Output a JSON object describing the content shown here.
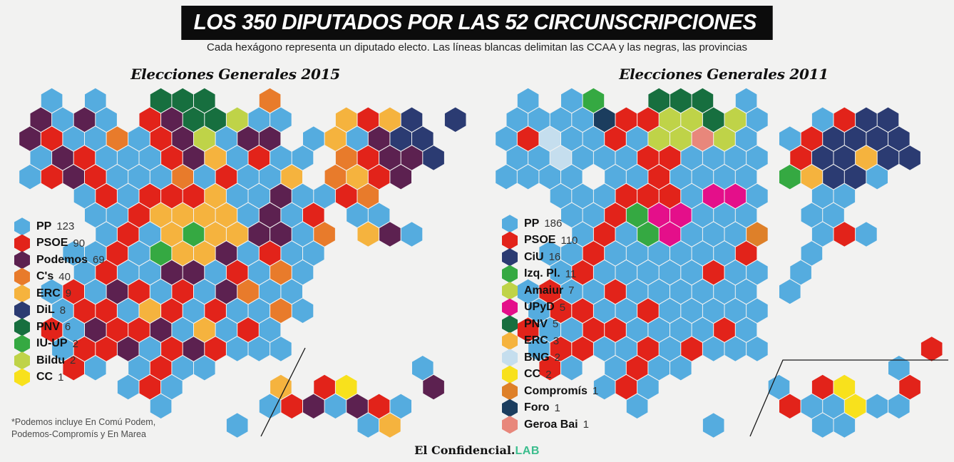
{
  "title": "LOS 350 DIPUTADOS POR LAS 52 CIRCUNSCRIPCIONES",
  "subtitle": "Cada hexágono representa un diputado electo. Las líneas blancas delimitan las CCAA y las negras, las provincias",
  "footnote_line1": "*Podemos incluye En Comú Podem,",
  "footnote_line2": "Podemos-Compromís y En Marea",
  "footer": {
    "brand": "El Confidencial",
    "dot": ".",
    "lab": "LAB",
    "lab_color": "#3bbd8d"
  },
  "palette": {
    "B": "#55acdf",
    "R": "#e2231a",
    "P": "#5c2150",
    "O": "#e87b2b",
    "A": "#f5b33e",
    "N": "#2b3b72",
    "G": "#176f3f",
    "I": "#35a942",
    "L": "#bfd348",
    "Y": "#f8e11c",
    "M": "#e40f8a",
    "C": "#c5deee",
    "F": "#1b3d5e",
    "S": "#e8877b",
    "T": "#de8029"
  },
  "chart_data": [
    {
      "type": "hex-cartogram",
      "title": "Elecciones Generales 2015",
      "unit": "diputados",
      "total_seats": 350,
      "series": [
        {
          "party": "PP",
          "seats": 123,
          "color_key": "B"
        },
        {
          "party": "PSOE",
          "seats": 90,
          "color_key": "R"
        },
        {
          "party": "Podemos",
          "seats": 69,
          "color_key": "P"
        },
        {
          "party": "C's",
          "seats": 40,
          "color_key": "O"
        },
        {
          "party": "ERC",
          "seats": 9,
          "color_key": "A"
        },
        {
          "party": "DiL",
          "seats": 8,
          "color_key": "N"
        },
        {
          "party": "PNV",
          "seats": 6,
          "color_key": "G"
        },
        {
          "party": "IU-UP",
          "seats": 2,
          "color_key": "I"
        },
        {
          "party": "Bildu",
          "seats": 2,
          "color_key": "L"
        },
        {
          "party": "CC",
          "seats": 1,
          "color_key": "Y"
        }
      ],
      "map_rows": [
        ".B.B..GGG..O........",
        "PBPB.RPGGLBB..ARAN.N",
        "PRBBOBRPLBPP.BABPNN.",
        "BPRBBBRPABRBB.ORPPN.",
        "BRPRBBBOBRBBA.OARP..",
        "..BRBRRRABBPBBRO....",
        "...BBRAAAABPBR.BB...",
        "...BRBAIAAPPBO.APB..",
        "..BBRBIAAPBRBB......",
        "..BRBBPPBRBOB.......",
        ".BRBPRBRBPOBB.......",
        ".BRRBARBRBBOB.......",
        ".RBPRRPBABRB........",
        ".BRRPBRPRBBB........",
        "..RB.BRBB.........B.",
        "....BRB....A.RY...P.",
        "......B....BRPBPRB..",
        ".........B.....BA..."
      ]
    },
    {
      "type": "hex-cartogram",
      "title": "Elecciones Generales 2011",
      "unit": "diputados",
      "total_seats": 350,
      "series": [
        {
          "party": "PP",
          "seats": 186,
          "color_key": "B"
        },
        {
          "party": "PSOE",
          "seats": 110,
          "color_key": "R"
        },
        {
          "party": "CiU",
          "seats": 16,
          "color_key": "N"
        },
        {
          "party": "Izq. Pl.",
          "seats": 11,
          "color_key": "I"
        },
        {
          "party": "Amaiur",
          "seats": 7,
          "color_key": "L"
        },
        {
          "party": "UPyD",
          "seats": 5,
          "color_key": "M"
        },
        {
          "party": "PNV",
          "seats": 5,
          "color_key": "G"
        },
        {
          "party": "ERC",
          "seats": 3,
          "color_key": "A"
        },
        {
          "party": "BNG",
          "seats": 2,
          "color_key": "C"
        },
        {
          "party": "CC",
          "seats": 2,
          "color_key": "Y"
        },
        {
          "party": "Compromís",
          "seats": 1,
          "color_key": "T"
        },
        {
          "party": "Foro",
          "seats": 1,
          "color_key": "F"
        },
        {
          "party": "Geroa Bai",
          "seats": 1,
          "color_key": "S"
        }
      ],
      "map_rows": [
        ".B.BI..GGG.B........",
        "BBBBFRRLLGLB..BRNN..",
        "BRCBBRBLLSLB.BRNNNN.",
        "BBCBBBRRBBBB.RNNANN.",
        "BBBB.BBRBBBB.IANNB..",
        "..BBBRRRBMMB..BB....",
        "...BBRIMMBBB..BB....",
        "...BRBIMBBBT..BRB...",
        "..BBRBBBBBBR..B.....",
        "..BRBBBBBRBB.B......",
        ".BRBBRBBBBBB.B......",
        ".BRRBBRBBBBB........",
        ".RBBRRBBBBRB........",
        ".BRRBBRBRBBB.......R",
        "..RB.BRBB.........B.",
        "....BRB.....B.RY..R.",
        "......B......RBBYBB.",
        ".........B....BB...."
      ]
    }
  ]
}
